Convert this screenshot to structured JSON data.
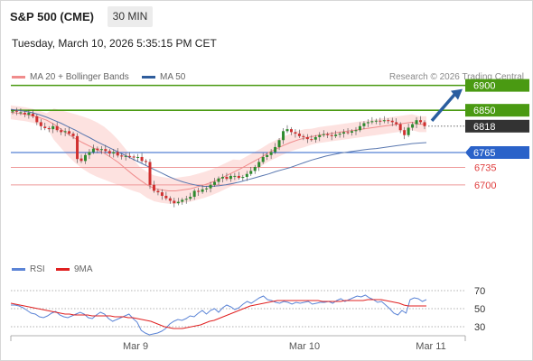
{
  "header": {
    "title": "S&P 500 (CME)",
    "timeframe": "30 MIN",
    "datetime": "Tuesday, March 10, 2026 5:35:15 PM CET"
  },
  "legend_main": [
    {
      "label": "MA 20 + Bollinger Bands",
      "color": "#f08c8c"
    },
    {
      "label": "MA 50",
      "color": "#2f5d9c"
    }
  ],
  "credit": "Research © 2026 Trading Central",
  "legend_rsi": [
    {
      "label": "RSI",
      "color": "#5b84d6"
    },
    {
      "label": "9MA",
      "color": "#e02020"
    }
  ],
  "colors": {
    "bull": "#2e8b2e",
    "bear": "#d03030",
    "resistance": "#4a9a12",
    "support": "#ee9999",
    "pivot": "#2a62c9",
    "current": "#333333",
    "band_fill": "#fde0de",
    "arrow": "#2a5ea0"
  },
  "chart_data": [
    {
      "type": "candlestick",
      "x_tick_labels": [
        "Mar 9",
        "Mar 10",
        "Mar 11"
      ],
      "levels": [
        {
          "value": 6900,
          "kind": "resistance",
          "label": "6900"
        },
        {
          "value": 6850,
          "kind": "resistance",
          "label": "6850"
        },
        {
          "value": 6818,
          "kind": "current",
          "label": "6818"
        },
        {
          "value": 6765,
          "kind": "pivot",
          "label": "6765"
        },
        {
          "value": 6735,
          "kind": "support",
          "label": "6735"
        },
        {
          "value": 6700,
          "kind": "support",
          "label": "6700"
        }
      ],
      "ylim": [
        6560,
        6912
      ],
      "closes": [
        6848,
        6848,
        6846,
        6842,
        6845,
        6838,
        6826,
        6818,
        6814,
        6812,
        6818,
        6810,
        6806,
        6808,
        6803,
        6798,
        6752,
        6748,
        6760,
        6766,
        6773,
        6770,
        6772,
        6768,
        6763,
        6766,
        6759,
        6757,
        6758,
        6757,
        6755,
        6756,
        6748,
        6746,
        6700,
        6688,
        6685,
        6678,
        6673,
        6668,
        6663,
        6666,
        6670,
        6672,
        6676,
        6688,
        6686,
        6691,
        6693,
        6700,
        6706,
        6713,
        6716,
        6712,
        6718,
        6718,
        6714,
        6716,
        6722,
        6728,
        6736,
        6746,
        6756,
        6760,
        6766,
        6776,
        6790,
        6808,
        6812,
        6806,
        6803,
        6798,
        6796,
        6792,
        6791,
        6796,
        6800,
        6802,
        6800,
        6798,
        6801,
        6803,
        6806,
        6805,
        6808,
        6810,
        6818,
        6824,
        6826,
        6828,
        6829,
        6828,
        6830,
        6829,
        6826,
        6822,
        6810,
        6800,
        6815,
        6822,
        6830,
        6826,
        6818
      ],
      "open_offsets": [
        0,
        1,
        -2,
        3,
        -4,
        5,
        12,
        8,
        3,
        2,
        -6,
        8,
        4,
        -2,
        5,
        5,
        46,
        5,
        -12,
        -6,
        -7,
        3,
        -2,
        4,
        5,
        -3,
        7,
        2,
        -1,
        1,
        2,
        -1,
        8,
        2,
        46,
        12,
        3,
        7,
        5,
        5,
        5,
        -3,
        -4,
        -2,
        -4,
        -12,
        2,
        -5,
        -2,
        -7,
        -6,
        -7,
        -3,
        4,
        -6,
        0,
        4,
        -2,
        -6,
        -6,
        -8,
        -10,
        -10,
        -4,
        -6,
        -10,
        -14,
        -18,
        -4,
        6,
        3,
        5,
        2,
        4,
        1,
        -5,
        -4,
        -2,
        2,
        2,
        -3,
        -2,
        -3,
        1,
        -3,
        -2,
        -8,
        -6,
        -2,
        -2,
        -1,
        1,
        -2,
        1,
        3,
        4,
        12,
        10,
        -15,
        -7,
        -8,
        4,
        8
      ],
      "series": [
        {
          "name": "MA 20 + Bollinger Bands",
          "values": [
            6846,
            6844,
            6842,
            6839,
            6835,
            6830,
            6822,
            6812,
            6802,
            6793,
            6785,
            6778,
            6771,
            6764,
            6755,
            6745,
            6733,
            6721,
            6710,
            6700,
            6693,
            6690,
            6688,
            6688,
            6690,
            6692,
            6696,
            6700,
            6705,
            6711,
            6718,
            6725,
            6732,
            6740,
            6748,
            6756,
            6765,
            6772,
            6779,
            6785,
            6790,
            6794,
            6797,
            6800,
            6802,
            6804,
            6806,
            6808,
            6810,
            6812,
            6814,
            6816,
            6818,
            6820,
            6822,
            6824,
            6826,
            6822,
            6822
          ]
        },
        {
          "name": "MA 50",
          "values": [
            6852,
            6850,
            6848,
            6845,
            6841,
            6836,
            6830,
            6824,
            6817,
            6810,
            6802,
            6795,
            6787,
            6780,
            6773,
            6766,
            6759,
            6752,
            6745,
            6738,
            6731,
            6724,
            6717,
            6711,
            6706,
            6702,
            6699,
            6697,
            6697,
            6698,
            6700,
            6703,
            6706,
            6710,
            6714,
            6718,
            6722,
            6727,
            6731,
            6735,
            6740,
            6745,
            6750,
            6754,
            6758,
            6761,
            6764,
            6766,
            6768,
            6770,
            6772,
            6773,
            6775,
            6777,
            6779,
            6781,
            6783,
            6784,
            6785
          ]
        }
      ]
    },
    {
      "type": "line",
      "title": "RSI",
      "ylim": [
        20,
        82
      ],
      "y_ticks": [
        70,
        50,
        30
      ],
      "reference_levels": [
        70,
        50,
        30
      ],
      "series": [
        {
          "name": "RSI",
          "values": [
            54,
            54,
            53,
            51,
            48,
            45,
            44,
            41,
            40,
            42,
            45,
            47,
            43,
            41,
            40,
            42,
            44,
            46,
            44,
            40,
            39,
            43,
            46,
            44,
            39,
            36,
            38,
            40,
            42,
            44,
            39,
            35,
            26,
            23,
            21,
            22,
            23,
            25,
            28,
            33,
            36,
            38,
            37,
            39,
            42,
            41,
            45,
            48,
            44,
            48,
            50,
            46,
            51,
            54,
            52,
            49,
            51,
            55,
            58,
            56,
            59,
            62,
            64,
            60,
            59,
            57,
            56,
            58,
            57,
            55,
            57,
            56,
            57,
            58,
            55,
            56,
            57,
            57,
            58,
            56,
            59,
            61,
            58,
            60,
            62,
            64,
            63,
            65,
            62,
            60,
            57,
            58,
            54,
            50,
            45,
            43,
            48,
            45,
            60,
            62,
            61,
            58,
            60
          ]
        },
        {
          "name": "9MA",
          "values": [
            56,
            55,
            54,
            53,
            52,
            51,
            50,
            49,
            48,
            47,
            46,
            45,
            44,
            44,
            43,
            43,
            43,
            43,
            42,
            42,
            42,
            42,
            42,
            41,
            41,
            41,
            40,
            40,
            39,
            38,
            37,
            36,
            34,
            32,
            30,
            29,
            28,
            28,
            28,
            29,
            30,
            31,
            32,
            34,
            36,
            37,
            39,
            41,
            43,
            45,
            47,
            49,
            51,
            53,
            54,
            55,
            56,
            57,
            58,
            59,
            59,
            59,
            59,
            59,
            59,
            59,
            59,
            59,
            59,
            58,
            58,
            58,
            58,
            58,
            59,
            59,
            59,
            59,
            59,
            60,
            60,
            60,
            60,
            59,
            58,
            57,
            56,
            54,
            53,
            53,
            53,
            53,
            53
          ]
        }
      ]
    }
  ]
}
